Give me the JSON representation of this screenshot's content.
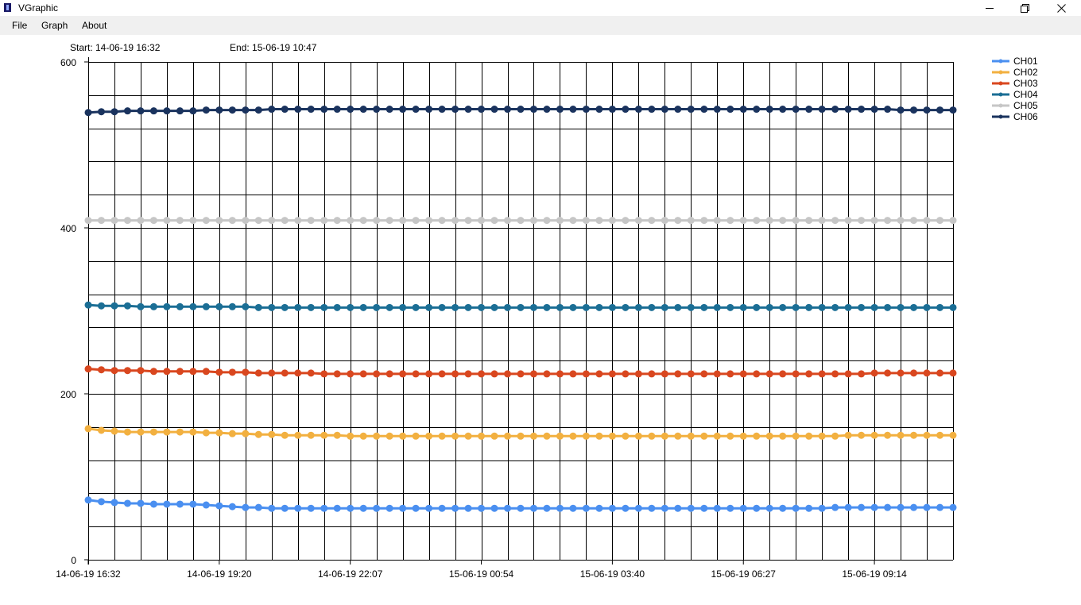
{
  "window": {
    "title": "VGraphic",
    "icon": "app-icon",
    "controls": [
      "minimize-icon",
      "maximize-icon",
      "close-icon"
    ]
  },
  "menu": {
    "file": "File",
    "graph": "Graph",
    "about": "About"
  },
  "range": {
    "start": "Start: 14-06-19 16:32",
    "end": "End: 15-06-19 10:47"
  },
  "chart_data": {
    "type": "line",
    "title": "",
    "xlabel": "",
    "ylabel": "",
    "ylim": [
      0,
      600
    ],
    "y_ticks": [
      0,
      200,
      400,
      600
    ],
    "x_tick_labels": [
      "14-06-19 16:32",
      "14-06-19 19:20",
      "14-06-19 22:07",
      "15-06-19 00:54",
      "15-06-19 03:40",
      "15-06-19 06:27",
      "15-06-19 09:14"
    ],
    "grid": true,
    "markers": true,
    "legend": "top-right",
    "series": [
      {
        "name": "CH01",
        "color": "#4a8ff0",
        "values": [
          72,
          70,
          69,
          68,
          68,
          67,
          67,
          67,
          67,
          66,
          65,
          64,
          63,
          63,
          62,
          62,
          62,
          62,
          62,
          62,
          62,
          62,
          62,
          62,
          62,
          62,
          62,
          62,
          62,
          62,
          62,
          62,
          62,
          62,
          62,
          62,
          62,
          62,
          62,
          62,
          62,
          62,
          62,
          62,
          62,
          62,
          62,
          62,
          62,
          62,
          62,
          62,
          62,
          62,
          62,
          62,
          62,
          63,
          63,
          63,
          63,
          63,
          63,
          63,
          63,
          63,
          63
        ]
      },
      {
        "name": "CH02",
        "color": "#f2b040",
        "values": [
          158,
          156,
          155,
          154,
          154,
          154,
          154,
          154,
          154,
          153,
          153,
          152,
          152,
          151,
          151,
          150,
          150,
          150,
          150,
          150,
          149,
          149,
          149,
          149,
          149,
          149,
          149,
          149,
          149,
          149,
          149,
          149,
          149,
          149,
          149,
          149,
          149,
          149,
          149,
          149,
          149,
          149,
          149,
          149,
          149,
          149,
          149,
          149,
          149,
          149,
          149,
          149,
          149,
          149,
          149,
          149,
          149,
          149,
          150,
          150,
          150,
          150,
          150,
          150,
          150,
          150,
          150
        ]
      },
      {
        "name": "CH03",
        "color": "#d9471f",
        "values": [
          230,
          229,
          228,
          228,
          228,
          227,
          227,
          227,
          227,
          227,
          226,
          226,
          226,
          225,
          225,
          225,
          225,
          225,
          224,
          224,
          224,
          224,
          224,
          224,
          224,
          224,
          224,
          224,
          224,
          224,
          224,
          224,
          224,
          224,
          224,
          224,
          224,
          224,
          224,
          224,
          224,
          224,
          224,
          224,
          224,
          224,
          224,
          224,
          224,
          224,
          224,
          224,
          224,
          224,
          224,
          224,
          224,
          224,
          224,
          224,
          225,
          225,
          225,
          225,
          225,
          225,
          225
        ]
      },
      {
        "name": "CH04",
        "color": "#1b6e95",
        "values": [
          307,
          306,
          306,
          306,
          305,
          305,
          305,
          305,
          305,
          305,
          305,
          305,
          305,
          304,
          304,
          304,
          304,
          304,
          304,
          304,
          304,
          304,
          304,
          304,
          304,
          304,
          304,
          304,
          304,
          304,
          304,
          304,
          304,
          304,
          304,
          304,
          304,
          304,
          304,
          304,
          304,
          304,
          304,
          304,
          304,
          304,
          304,
          304,
          304,
          304,
          304,
          304,
          304,
          304,
          304,
          304,
          304,
          304,
          304,
          304,
          304,
          304,
          304,
          304,
          304,
          304,
          304
        ]
      },
      {
        "name": "CH05",
        "color": "#c6c6c6",
        "values": [
          409,
          409,
          409,
          409,
          409,
          409,
          409,
          409,
          409,
          409,
          409,
          409,
          409,
          409,
          409,
          409,
          409,
          409,
          409,
          409,
          409,
          409,
          409,
          409,
          409,
          409,
          409,
          409,
          409,
          409,
          409,
          409,
          409,
          409,
          409,
          409,
          409,
          409,
          409,
          409,
          409,
          409,
          409,
          409,
          409,
          409,
          409,
          409,
          409,
          409,
          409,
          409,
          409,
          409,
          409,
          409,
          409,
          409,
          409,
          409,
          409,
          409,
          409,
          409,
          409,
          409,
          409
        ]
      },
      {
        "name": "CH06",
        "color": "#1a335e",
        "values": [
          539,
          540,
          540,
          541,
          541,
          541,
          541,
          541,
          541,
          542,
          542,
          542,
          542,
          542,
          543,
          543,
          543,
          543,
          543,
          543,
          543,
          543,
          543,
          543,
          543,
          543,
          543,
          543,
          543,
          543,
          543,
          543,
          543,
          543,
          543,
          543,
          543,
          543,
          543,
          543,
          543,
          543,
          543,
          543,
          543,
          543,
          543,
          543,
          543,
          543,
          543,
          543,
          543,
          543,
          543,
          543,
          543,
          543,
          543,
          543,
          543,
          543,
          542,
          542,
          542,
          542,
          542
        ]
      }
    ]
  }
}
